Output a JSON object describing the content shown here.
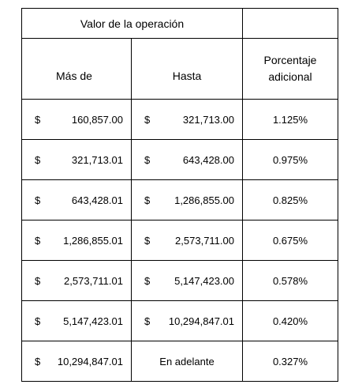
{
  "table": {
    "title": "Valor de la operación",
    "headers": {
      "from": "Más de",
      "to": "Hasta",
      "percent_line1": "Porcentaje",
      "percent_line2": "adicional"
    },
    "currency_symbol": "$",
    "rows": [
      {
        "from": "160,857.00",
        "to": "321,713.00",
        "percent": "1.125%"
      },
      {
        "from": "321,713.01",
        "to": "643,428.00",
        "percent": "0.975%"
      },
      {
        "from": "643,428.01",
        "to": "1,286,855.00",
        "percent": "0.825%"
      },
      {
        "from": "1,286,855.01",
        "to": "2,573,711.00",
        "percent": "0.675%"
      },
      {
        "from": "2,573,711.01",
        "to": "5,147,423.00",
        "percent": "0.578%"
      },
      {
        "from": "5,147,423.01",
        "to": "10,294,847.01",
        "percent": "0.420%"
      },
      {
        "from": "10,294,847.01",
        "to": "En adelante",
        "percent": "0.327%"
      }
    ]
  }
}
